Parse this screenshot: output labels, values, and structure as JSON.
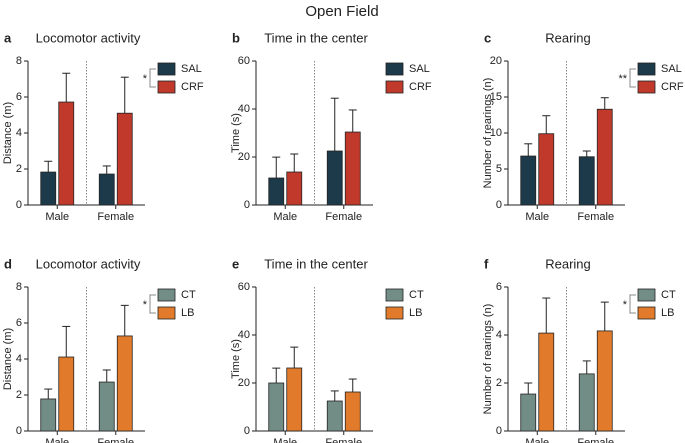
{
  "title": "Open Field",
  "chart_data": [
    {
      "type": "bar",
      "label": "a",
      "title": "Locomotor activity",
      "ylabel": "Distance (m)",
      "categories": [
        "Male",
        "Female"
      ],
      "series": [
        {
          "name": "SAL",
          "color": "#1c3a4a",
          "values": [
            1.83,
            1.72
          ],
          "errors": [
            0.6,
            0.45
          ]
        },
        {
          "name": "CRF",
          "color": "#c0392b",
          "values": [
            5.72,
            5.1
          ],
          "errors": [
            1.6,
            2.0
          ]
        }
      ],
      "ylim": [
        0,
        8
      ],
      "yticks": [
        0,
        2,
        4,
        6,
        8
      ],
      "annotation": "*"
    },
    {
      "type": "bar",
      "label": "b",
      "title": "Time in the center",
      "ylabel": "Time (s)",
      "categories": [
        "Male",
        "Female"
      ],
      "series": [
        {
          "name": "SAL",
          "color": "#1c3a4a",
          "values": [
            11.25,
            22.5
          ],
          "errors": [
            8.7,
            22
          ]
        },
        {
          "name": "CRF",
          "color": "#c0392b",
          "values": [
            13.75,
            30.4
          ],
          "errors": [
            7.5,
            9.2
          ]
        }
      ],
      "ylim": [
        0,
        60
      ],
      "yticks": [
        0,
        20,
        40,
        60
      ]
    },
    {
      "type": "bar",
      "label": "c",
      "title": "Rearing",
      "ylabel": "Number of rearings (n)",
      "categories": [
        "Male",
        "Female"
      ],
      "series": [
        {
          "name": "SAL",
          "color": "#1c3a4a",
          "values": [
            6.8,
            6.7
          ],
          "errors": [
            1.7,
            0.8
          ]
        },
        {
          "name": "CRF",
          "color": "#c0392b",
          "values": [
            9.9,
            13.3
          ],
          "errors": [
            2.5,
            1.6
          ]
        }
      ],
      "ylim": [
        0,
        20
      ],
      "yticks": [
        0,
        5,
        10,
        15,
        20
      ],
      "annotation": "**"
    },
    {
      "type": "bar",
      "label": "d",
      "title": "Locomotor activity",
      "ylabel": "Distance (m)",
      "categories": [
        "Male",
        "Female"
      ],
      "series": [
        {
          "name": "CT",
          "color": "#728d86",
          "values": [
            1.78,
            2.72
          ],
          "errors": [
            0.55,
            0.67
          ]
        },
        {
          "name": "LB",
          "color": "#e17b2b",
          "values": [
            4.11,
            5.28
          ],
          "errors": [
            1.7,
            1.7
          ]
        }
      ],
      "ylim": [
        0,
        8
      ],
      "yticks": [
        0,
        2,
        4,
        6,
        8
      ],
      "annotation": "*"
    },
    {
      "type": "bar",
      "label": "e",
      "title": "Time in the center",
      "ylabel": "Time (s)",
      "categories": [
        "Male",
        "Female"
      ],
      "series": [
        {
          "name": "CT",
          "color": "#728d86",
          "values": [
            20,
            12.5
          ],
          "errors": [
            6.2,
            4.2
          ]
        },
        {
          "name": "LB",
          "color": "#e17b2b",
          "values": [
            26.25,
            16.25
          ],
          "errors": [
            8.7,
            5.4
          ]
        }
      ],
      "ylim": [
        0,
        60
      ],
      "yticks": [
        0,
        20,
        40,
        60
      ]
    },
    {
      "type": "bar",
      "label": "f",
      "title": "Rearing",
      "ylabel": "Number of rearings (n)",
      "categories": [
        "Male",
        "Female"
      ],
      "series": [
        {
          "name": "CT",
          "color": "#728d86",
          "values": [
            1.54,
            2.38
          ],
          "errors": [
            0.46,
            0.54
          ]
        },
        {
          "name": "LB",
          "color": "#e17b2b",
          "values": [
            4.08,
            4.17
          ],
          "errors": [
            1.46,
            1.2
          ]
        }
      ],
      "ylim": [
        0,
        6
      ],
      "yticks": [
        0,
        2,
        4,
        6
      ],
      "annotation": "*"
    }
  ]
}
